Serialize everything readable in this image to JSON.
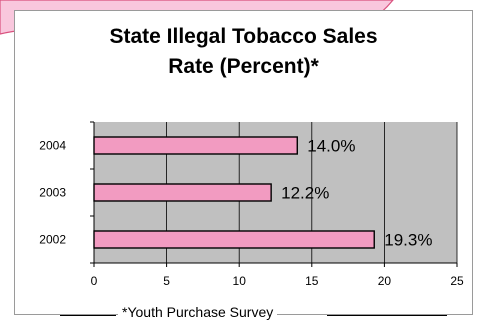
{
  "colors": {
    "slide_fill": "#f9c7dd",
    "slide_stroke": "#d9517e",
    "plot_area": "#c0c0c0",
    "bar_fill": "#f29bc1",
    "bar_stroke": "#000000",
    "gridline": "#000000"
  },
  "chart_data": {
    "type": "bar",
    "orientation": "horizontal",
    "title": "State Illegal Tobacco Sales\nRate (Percent)*",
    "categories": [
      "2004",
      "2003",
      "2002"
    ],
    "values": [
      14.0,
      12.2,
      19.3
    ],
    "data_labels": [
      "14.0%",
      "12.2%",
      "19.3%"
    ],
    "xlim": [
      0,
      25
    ],
    "xticks": [
      0,
      5,
      10,
      15,
      20,
      25
    ],
    "xtick_labels": [
      "0",
      "5",
      "10",
      "15",
      "20",
      "25"
    ],
    "grid": true,
    "legend": "none",
    "footnote": "*Youth Purchase Survey"
  }
}
